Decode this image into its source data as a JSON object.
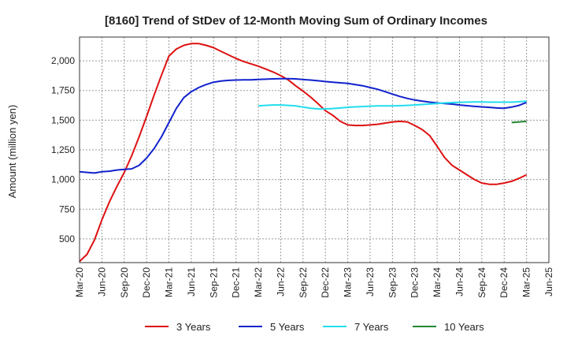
{
  "chart_data": {
    "type": "line",
    "title": "[8160]  Trend of StDev of 12-Month Moving Sum of Ordinary Incomes",
    "xlabel": "",
    "ylabel": "Amount (million yen)",
    "ylim": [
      300,
      2200
    ],
    "yticks": [
      500,
      750,
      1000,
      1250,
      1500,
      1750,
      2000
    ],
    "ytick_labels": [
      "500",
      "750",
      "1,000",
      "1,250",
      "1,500",
      "1,750",
      "2,000"
    ],
    "x_start": "Mar-20",
    "x_tick_labels": [
      "Mar-20",
      "Jun-20",
      "Sep-20",
      "Dec-20",
      "Mar-21",
      "Jun-21",
      "Sep-21",
      "Dec-21",
      "Mar-22",
      "Jun-22",
      "Sep-22",
      "Dec-22",
      "Mar-23",
      "Jun-23",
      "Sep-23",
      "Dec-23",
      "Mar-24",
      "Jun-24",
      "Sep-24",
      "Dec-24",
      "Mar-25",
      "Jun-25"
    ],
    "grid": true,
    "legend_position": "bottom",
    "series": [
      {
        "name": "3 Years",
        "color": "#dd1111",
        "start_month": 0,
        "values": [
          310,
          370,
          490,
          660,
          810,
          940,
          1060,
          1200,
          1360,
          1530,
          1710,
          1880,
          2040,
          2100,
          2130,
          2145,
          2145,
          2130,
          2110,
          2080,
          2050,
          2020,
          1995,
          1975,
          1955,
          1930,
          1905,
          1875,
          1840,
          1790,
          1745,
          1695,
          1640,
          1580,
          1540,
          1490,
          1460,
          1455,
          1455,
          1460,
          1465,
          1475,
          1485,
          1490,
          1485,
          1455,
          1420,
          1370,
          1280,
          1185,
          1120,
          1080,
          1040,
          1000,
          970,
          960,
          960,
          970,
          985,
          1010,
          1040
        ]
      },
      {
        "name": "5 Years",
        "color": "#1122cc",
        "start_month": 0,
        "values": [
          1065,
          1060,
          1055,
          1065,
          1070,
          1080,
          1085,
          1090,
          1120,
          1180,
          1260,
          1360,
          1480,
          1600,
          1690,
          1740,
          1775,
          1800,
          1820,
          1830,
          1835,
          1838,
          1840,
          1840,
          1843,
          1845,
          1848,
          1850,
          1850,
          1848,
          1842,
          1838,
          1832,
          1825,
          1820,
          1815,
          1810,
          1800,
          1790,
          1775,
          1760,
          1740,
          1720,
          1700,
          1683,
          1670,
          1660,
          1652,
          1645,
          1640,
          1635,
          1628,
          1622,
          1616,
          1612,
          1608,
          1603,
          1600,
          1610,
          1625,
          1650
        ]
      },
      {
        "name": "7 Years",
        "color": "#22ddee",
        "start_month": 24,
        "values": [
          1620,
          1625,
          1628,
          1628,
          1625,
          1620,
          1610,
          1600,
          1595,
          1595,
          1598,
          1603,
          1608,
          1612,
          1615,
          1618,
          1620,
          1620,
          1620,
          1622,
          1625,
          1628,
          1632,
          1636,
          1640,
          1645,
          1648,
          1650,
          1652,
          1653,
          1653,
          1652,
          1652,
          1652,
          1652,
          1655,
          1660
        ]
      },
      {
        "name": "10 Years",
        "color": "#228833",
        "start_month": 58,
        "values": [
          1480,
          1485,
          1490
        ]
      }
    ]
  }
}
